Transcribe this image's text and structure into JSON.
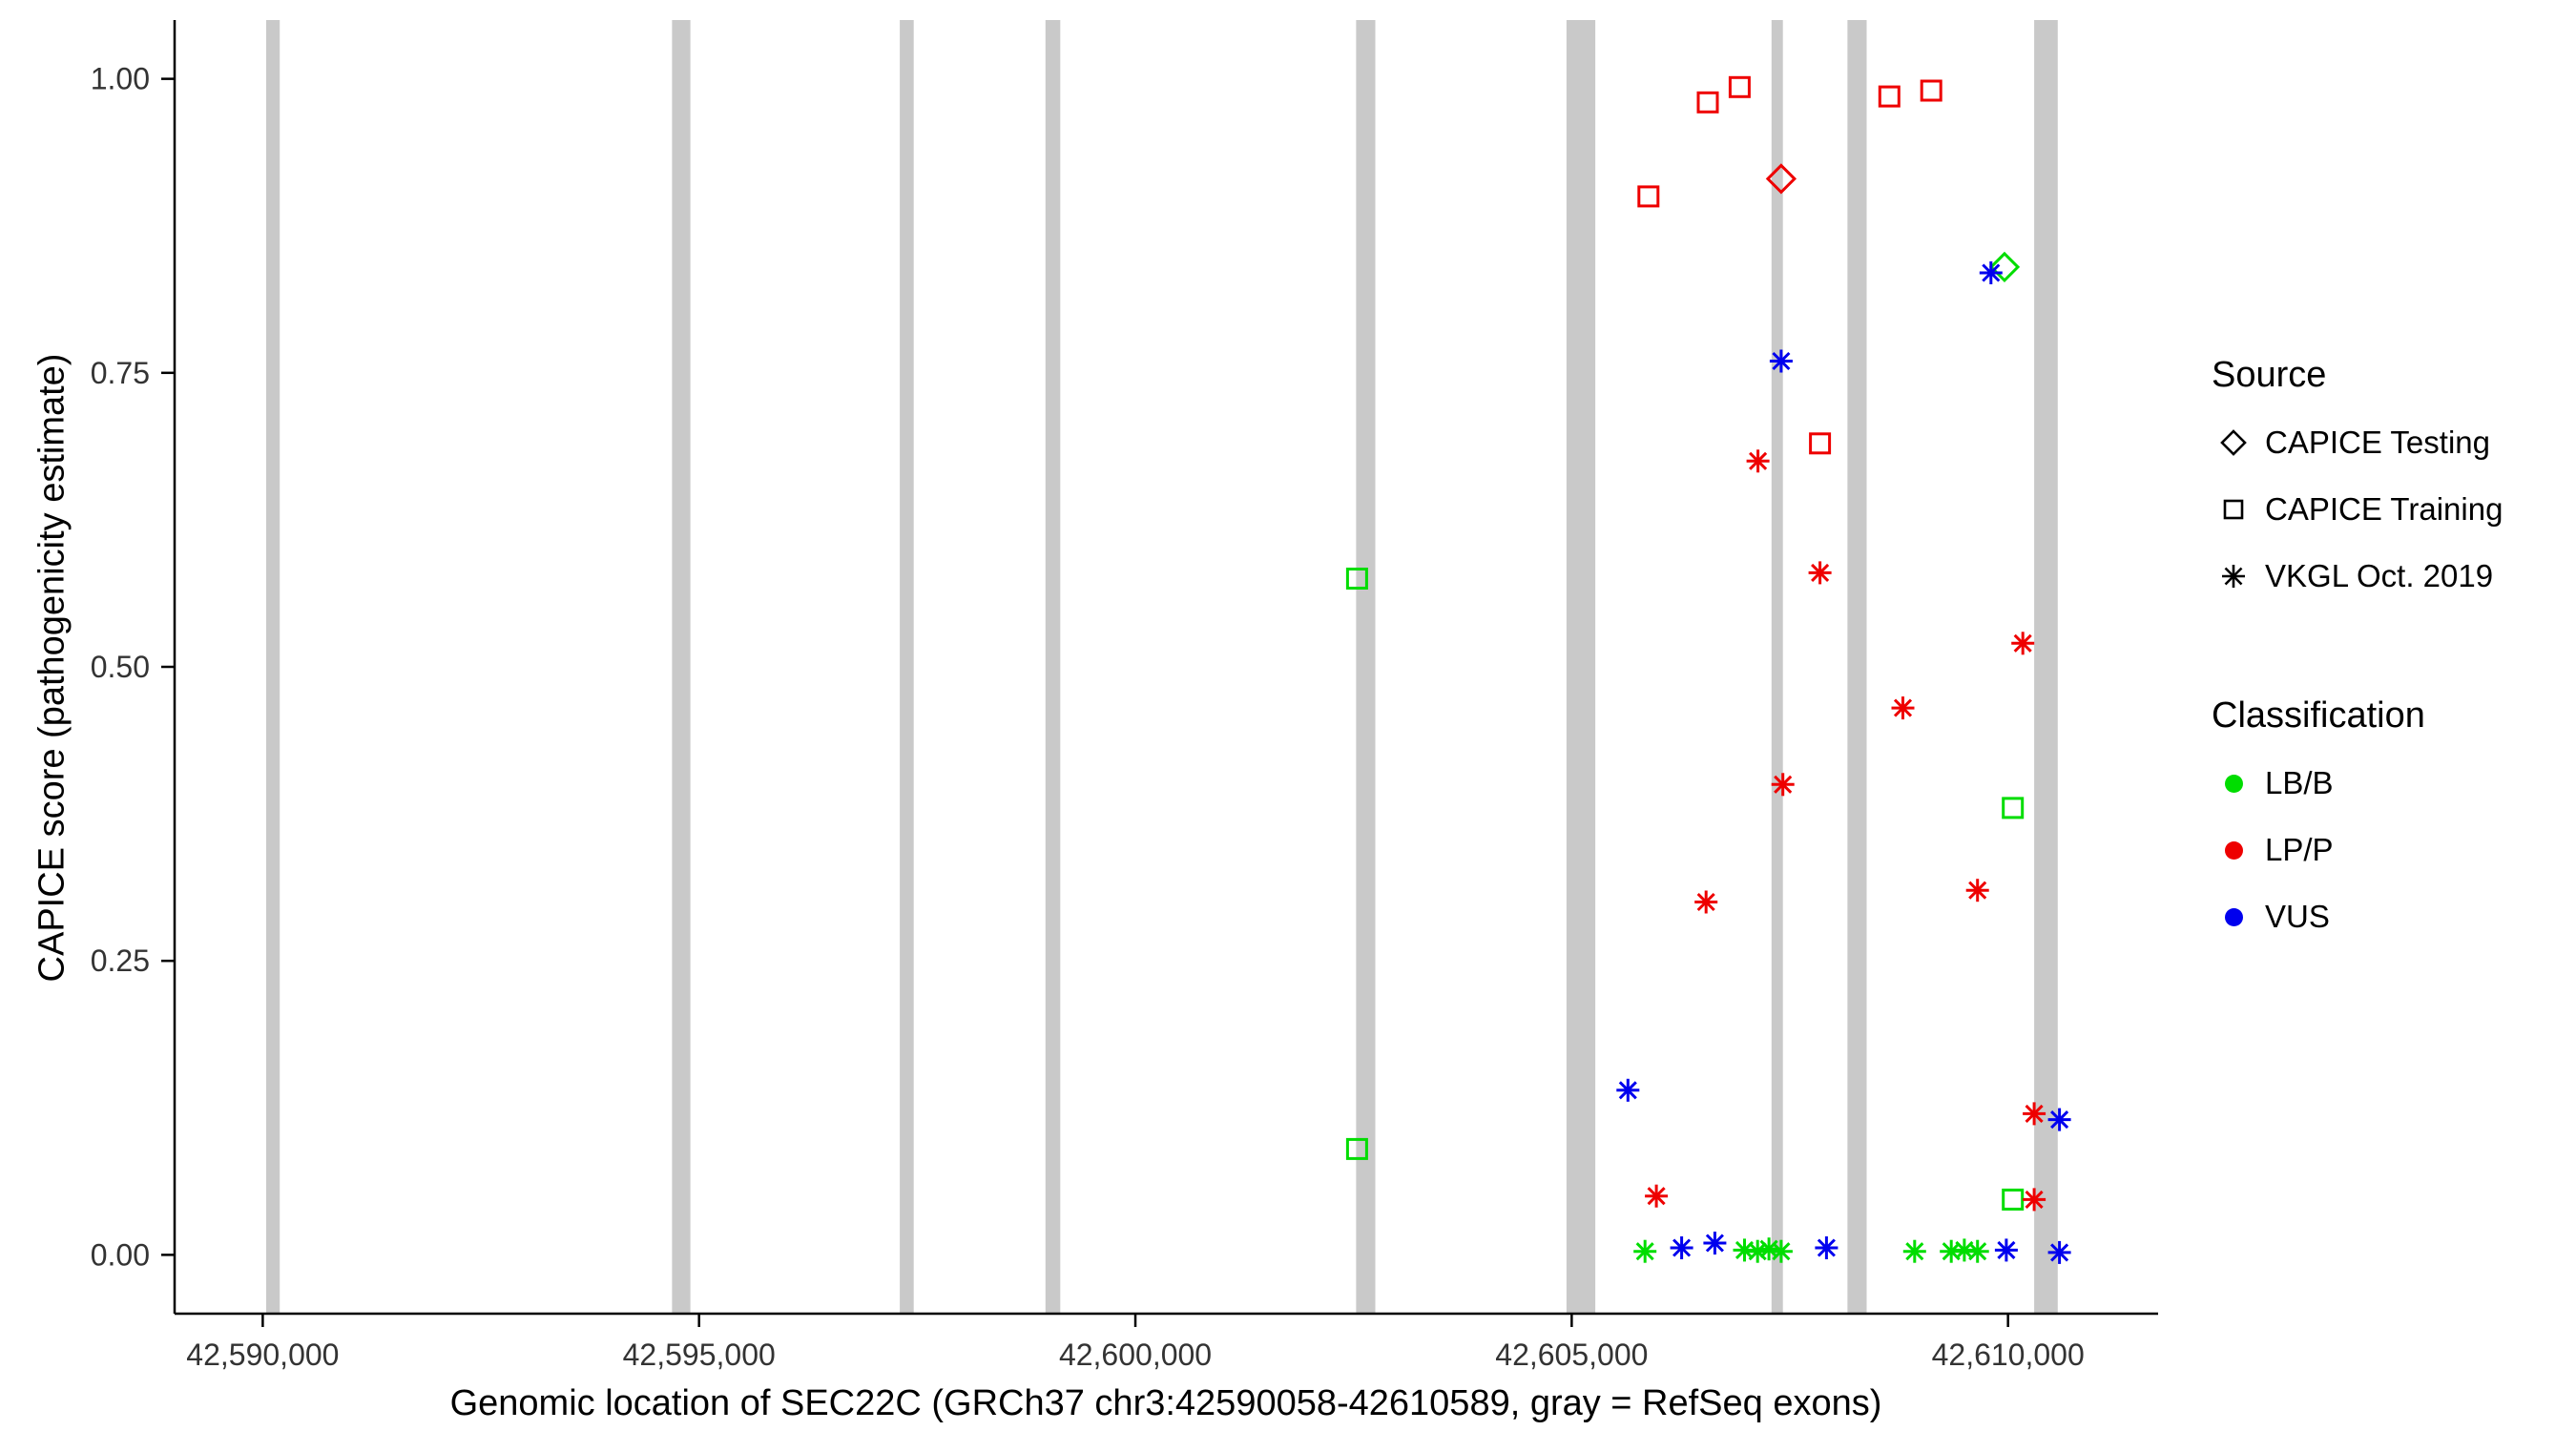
{
  "axes": {
    "x_title": "Genomic location of SEC22C (GRCh37 chr3:42590058-42610589, gray = RefSeq exons)",
    "y_title": "CAPICE score (pathogenicity estimate)"
  },
  "legend": {
    "source": {
      "title": "Source",
      "items": [
        {
          "label": "CAPICE Testing",
          "shape": "diamond"
        },
        {
          "label": "CAPICE Training",
          "shape": "square"
        },
        {
          "label": "VKGL Oct. 2019",
          "shape": "asterisk"
        }
      ]
    },
    "classification": {
      "title": "Classification",
      "items": [
        {
          "label": "LB/B",
          "color": "#00dd00"
        },
        {
          "label": "LP/P",
          "color": "#ee0000"
        },
        {
          "label": "VUS",
          "color": "#0000ee"
        }
      ]
    }
  },
  "chart_data": {
    "type": "scatter",
    "title": "",
    "xlabel": "Genomic location of SEC22C (GRCh37 chr3:42590058-42610589, gray = RefSeq exons)",
    "ylabel": "CAPICE score (pathogenicity estimate)",
    "xlim": [
      42588990,
      42611720
    ],
    "ylim": [
      -0.05,
      1.05
    ],
    "grid": false,
    "legend_position": "right",
    "x_ticks": [
      {
        "value": 42590000,
        "label": "42,590,000"
      },
      {
        "value": 42595000,
        "label": "42,595,000"
      },
      {
        "value": 42600000,
        "label": "42,600,000"
      },
      {
        "value": 42605000,
        "label": "42,605,000"
      },
      {
        "value": 42610000,
        "label": "42,610,000"
      }
    ],
    "y_ticks": [
      {
        "value": 0.0,
        "label": "0.00"
      },
      {
        "value": 0.25,
        "label": "0.25"
      },
      {
        "value": 0.5,
        "label": "0.50"
      },
      {
        "value": 0.75,
        "label": "0.75"
      },
      {
        "value": 1.0,
        "label": "1.00"
      }
    ],
    "exon_color": "#c9c9c9",
    "exons": [
      [
        42590040,
        42590195
      ],
      [
        42594690,
        42594900
      ],
      [
        42597300,
        42597460
      ],
      [
        42598970,
        42599140
      ],
      [
        42602530,
        42602750
      ],
      [
        42604940,
        42605270
      ],
      [
        42607290,
        42607420
      ],
      [
        42608160,
        42608380
      ],
      [
        42610300,
        42610570
      ]
    ],
    "colors": {
      "LB/B": "#00dd00",
      "LP/P": "#ee0000",
      "VUS": "#0000ee"
    },
    "shapes": {
      "CAPICE Testing": "diamond",
      "CAPICE Training": "square",
      "VKGL Oct. 2019": "asterisk"
    },
    "points": [
      {
        "x": 42605880,
        "y": 0.9,
        "source": "CAPICE Training",
        "class": "LP/P"
      },
      {
        "x": 42606560,
        "y": 0.98,
        "source": "CAPICE Training",
        "class": "LP/P"
      },
      {
        "x": 42606925,
        "y": 0.993,
        "source": "CAPICE Training",
        "class": "LP/P"
      },
      {
        "x": 42608640,
        "y": 0.985,
        "source": "CAPICE Training",
        "class": "LP/P"
      },
      {
        "x": 42609120,
        "y": 0.99,
        "source": "CAPICE Training",
        "class": "LP/P"
      },
      {
        "x": 42607845,
        "y": 0.69,
        "source": "CAPICE Training",
        "class": "LP/P"
      },
      {
        "x": 42602540,
        "y": 0.575,
        "source": "CAPICE Training",
        "class": "LB/B"
      },
      {
        "x": 42602540,
        "y": 0.09,
        "source": "CAPICE Training",
        "class": "LB/B"
      },
      {
        "x": 42610055,
        "y": 0.38,
        "source": "CAPICE Training",
        "class": "LB/B"
      },
      {
        "x": 42610055,
        "y": 0.047,
        "source": "CAPICE Training",
        "class": "LB/B"
      },
      {
        "x": 42607400,
        "y": 0.915,
        "source": "CAPICE Testing",
        "class": "LP/P"
      },
      {
        "x": 42609960,
        "y": 0.84,
        "source": "CAPICE Testing",
        "class": "LB/B"
      },
      {
        "x": 42609805,
        "y": 0.835,
        "source": "VKGL Oct. 2019",
        "class": "VUS"
      },
      {
        "x": 42607400,
        "y": 0.76,
        "source": "VKGL Oct. 2019",
        "class": "VUS"
      },
      {
        "x": 42607135,
        "y": 0.675,
        "source": "VKGL Oct. 2019",
        "class": "LP/P"
      },
      {
        "x": 42607845,
        "y": 0.58,
        "source": "VKGL Oct. 2019",
        "class": "LP/P"
      },
      {
        "x": 42608795,
        "y": 0.465,
        "source": "VKGL Oct. 2019",
        "class": "LP/P"
      },
      {
        "x": 42607420,
        "y": 0.4,
        "source": "VKGL Oct. 2019",
        "class": "LP/P"
      },
      {
        "x": 42606540,
        "y": 0.3,
        "source": "VKGL Oct. 2019",
        "class": "LP/P"
      },
      {
        "x": 42609650,
        "y": 0.31,
        "source": "VKGL Oct. 2019",
        "class": "LP/P"
      },
      {
        "x": 42610170,
        "y": 0.52,
        "source": "VKGL Oct. 2019",
        "class": "LP/P"
      },
      {
        "x": 42605645,
        "y": 0.14,
        "source": "VKGL Oct. 2019",
        "class": "VUS"
      },
      {
        "x": 42605970,
        "y": 0.05,
        "source": "VKGL Oct. 2019",
        "class": "LP/P"
      },
      {
        "x": 42610300,
        "y": 0.12,
        "source": "VKGL Oct. 2019",
        "class": "LP/P"
      },
      {
        "x": 42610590,
        "y": 0.115,
        "source": "VKGL Oct. 2019",
        "class": "VUS"
      },
      {
        "x": 42610300,
        "y": 0.047,
        "source": "VKGL Oct. 2019",
        "class": "LP/P"
      },
      {
        "x": 42605840,
        "y": 0.003,
        "source": "VKGL Oct. 2019",
        "class": "LB/B"
      },
      {
        "x": 42606260,
        "y": 0.006,
        "source": "VKGL Oct. 2019",
        "class": "VUS"
      },
      {
        "x": 42606640,
        "y": 0.01,
        "source": "VKGL Oct. 2019",
        "class": "VUS"
      },
      {
        "x": 42606980,
        "y": 0.004,
        "source": "VKGL Oct. 2019",
        "class": "LB/B"
      },
      {
        "x": 42607130,
        "y": 0.003,
        "source": "VKGL Oct. 2019",
        "class": "LB/B"
      },
      {
        "x": 42607260,
        "y": 0.005,
        "source": "VKGL Oct. 2019",
        "class": "LB/B"
      },
      {
        "x": 42607400,
        "y": 0.003,
        "source": "VKGL Oct. 2019",
        "class": "LB/B"
      },
      {
        "x": 42607920,
        "y": 0.006,
        "source": "VKGL Oct. 2019",
        "class": "VUS"
      },
      {
        "x": 42608930,
        "y": 0.003,
        "source": "VKGL Oct. 2019",
        "class": "LB/B"
      },
      {
        "x": 42609350,
        "y": 0.003,
        "source": "VKGL Oct. 2019",
        "class": "LB/B"
      },
      {
        "x": 42609500,
        "y": 0.004,
        "source": "VKGL Oct. 2019",
        "class": "LB/B"
      },
      {
        "x": 42609650,
        "y": 0.003,
        "source": "VKGL Oct. 2019",
        "class": "LB/B"
      },
      {
        "x": 42609980,
        "y": 0.004,
        "source": "VKGL Oct. 2019",
        "class": "VUS"
      },
      {
        "x": 42610590,
        "y": 0.002,
        "source": "VKGL Oct. 2019",
        "class": "VUS"
      }
    ]
  }
}
